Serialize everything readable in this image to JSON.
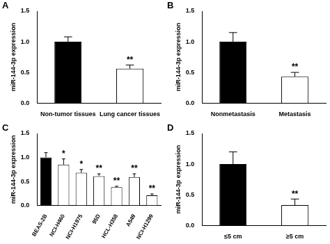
{
  "chart_data": [
    {
      "type": "bar",
      "panel_label": "A",
      "y_label": "miR-144-3p expression",
      "categories": [
        "Non-tumor tissues",
        "Lung cancer tissues"
      ],
      "values": [
        1.0,
        0.56
      ],
      "errors": [
        0.08,
        0.06
      ],
      "colors": [
        "#000000",
        "#ffffff"
      ],
      "annotations": [
        null,
        "**"
      ],
      "ylim": [
        0,
        1.5
      ],
      "yticks": [
        {
          "value": 0,
          "label": "0.0"
        },
        0.5,
        {
          "value": 1,
          "label": "1.0"
        },
        1.5
      ],
      "grid": false
    },
    {
      "type": "bar",
      "panel_label": "B",
      "y_label": "miR-144-3p expression",
      "categories": [
        "Nonmetastasis",
        "Metastasis"
      ],
      "values": [
        1.0,
        0.43
      ],
      "errors": [
        0.15,
        0.07
      ],
      "colors": [
        "#000000",
        "#ffffff"
      ],
      "annotations": [
        null,
        "**"
      ],
      "ylim": [
        0,
        1.5
      ],
      "yticks": [
        {
          "value": 0,
          "label": "0.0"
        },
        0.5,
        {
          "value": 1,
          "label": "1.0"
        },
        1.5
      ],
      "grid": false
    },
    {
      "type": "bar",
      "panel_label": "C",
      "y_label": "miR-144-3p expression",
      "categories": [
        "BEAS-2B",
        "NCI-H460",
        "NCI-H1975",
        "95D",
        "HCL-H358",
        "A549",
        "NCI-H1299"
      ],
      "values": [
        1.0,
        0.85,
        0.68,
        0.61,
        0.38,
        0.59,
        0.21
      ],
      "errors": [
        0.1,
        0.12,
        0.07,
        0.05,
        0.02,
        0.07,
        0.03
      ],
      "colors": [
        "#000000",
        "#ffffff",
        "#ffffff",
        "#ffffff",
        "#ffffff",
        "#ffffff",
        "#ffffff"
      ],
      "annotations": [
        null,
        "*",
        "*",
        "**",
        "**",
        "**",
        "**"
      ],
      "ylim": [
        0,
        1.5
      ],
      "yticks": [
        {
          "value": 0,
          "label": "0.0"
        },
        0.5,
        {
          "value": 1,
          "label": "1.0"
        },
        1.5
      ],
      "grid": false
    },
    {
      "type": "bar",
      "panel_label": "D",
      "y_label": "miR-144-3p expression",
      "categories": [
        "≤5 cm",
        "≥5 cm"
      ],
      "values": [
        1.0,
        0.33
      ],
      "errors": [
        0.2,
        0.1
      ],
      "colors": [
        "#000000",
        "#ffffff"
      ],
      "annotations": [
        null,
        "**"
      ],
      "ylim": [
        0,
        1.5
      ],
      "yticks": [
        {
          "value": 0,
          "label": "0.0"
        },
        0.5,
        {
          "value": 1,
          "label": "1.0"
        },
        1.5
      ],
      "grid": false
    }
  ]
}
